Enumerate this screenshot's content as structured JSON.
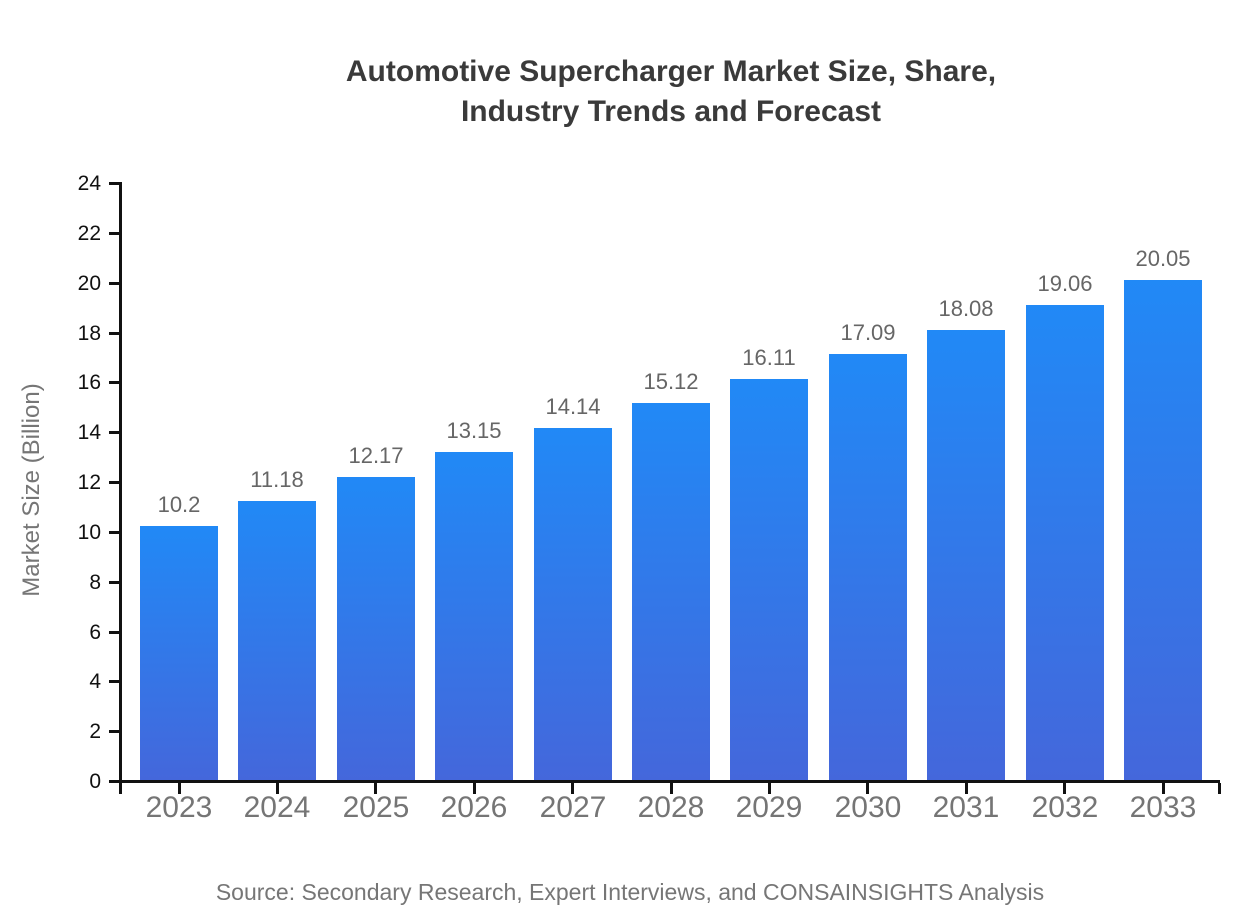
{
  "header": {
    "title_line1": "Automotive Supercharger Market Size, Share,",
    "title_line2": "Industry Trends and Forecast"
  },
  "chart_data": {
    "type": "bar",
    "title": "Automotive Supercharger Market Size, Share, Industry Trends and Forecast",
    "categories": [
      "2023",
      "2024",
      "2025",
      "2026",
      "2027",
      "2028",
      "2029",
      "2030",
      "2031",
      "2032",
      "2033"
    ],
    "values": [
      10.2,
      11.18,
      12.17,
      13.15,
      14.14,
      15.12,
      16.11,
      17.09,
      18.08,
      19.06,
      20.05
    ],
    "value_labels": [
      "10.2",
      "11.18",
      "12.17",
      "13.15",
      "14.14",
      "15.12",
      "16.11",
      "17.09",
      "18.08",
      "19.06",
      "20.05"
    ],
    "xlabel": "",
    "ylabel": "Market Size (Billion)",
    "ylim": [
      0,
      24
    ],
    "yticks": [
      0,
      2,
      4,
      6,
      8,
      10,
      12,
      14,
      16,
      18,
      20,
      22,
      24
    ],
    "grid": false,
    "legend": "none",
    "series_name": "Market Size (Billion)"
  },
  "footer": {
    "source": "Source: Secondary Research, Expert Interviews, and CONSAINSIGHTS Analysis"
  },
  "colors": {
    "bar_gradient_top": "#2189f6",
    "bar_gradient_bottom": "#4467db",
    "axis": "#111111",
    "y_tick_label": "#111111",
    "x_tick_label": "#757575",
    "value_label": "#666666",
    "title": "#3a3a3a",
    "muted_text": "#767676",
    "background": "#ffffff"
  }
}
